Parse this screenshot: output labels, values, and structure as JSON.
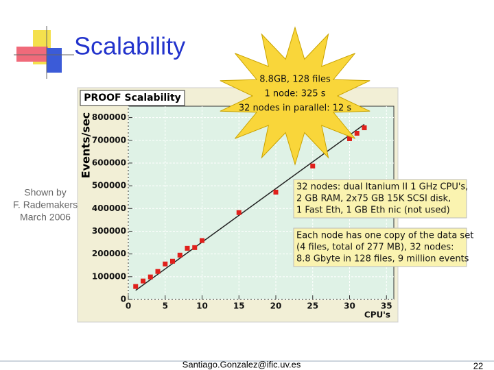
{
  "slide": {
    "title": "Scalability",
    "note": [
      "Shown by",
      "F. Rademakers",
      "March 2006"
    ],
    "callout": [
      "8.8GB, 128 files",
      "1 node: 325 s",
      "32 nodes in parallel: 12 s"
    ],
    "boxes": [
      [
        "32 nodes: dual Itanium II 1 GHz CPU's,",
        "2 GB RAM, 2x75 GB 15K SCSI disk,",
        "1 Fast Eth, 1 GB Eth nic (not used)"
      ],
      [
        "Each node has one copy of the data set",
        "(4 files, total of 277 MB), 32 nodes:",
        "8.8 Gbyte in 128 files, 9 million events"
      ]
    ],
    "footer": "Santiago.Gonzalez@ific.uv.es",
    "page": "22"
  },
  "chart_data": {
    "type": "scatter",
    "title": "PROOF Scalability",
    "x_label": "CPU's",
    "y_label": "Events/sec",
    "x": [
      1,
      2,
      3,
      4,
      5,
      6,
      7,
      8,
      9,
      10,
      15,
      20,
      25,
      30,
      31,
      32
    ],
    "values": [
      57000,
      81000,
      99000,
      123000,
      156000,
      168000,
      195000,
      225000,
      228000,
      259000,
      382000,
      472000,
      587000,
      707000,
      731000,
      755000
    ],
    "color": "#e0201b",
    "trend": {
      "x": [
        1,
        32
      ],
      "values": [
        40000,
        770000
      ]
    },
    "xlim": [
      0,
      36
    ],
    "ylim": [
      0,
      850000
    ],
    "xticks": [
      0,
      5,
      10,
      15,
      20,
      25,
      30,
      35
    ],
    "yticks": [
      0,
      100000,
      200000,
      300000,
      400000,
      500000,
      600000,
      700000,
      800000
    ],
    "grid": true
  }
}
